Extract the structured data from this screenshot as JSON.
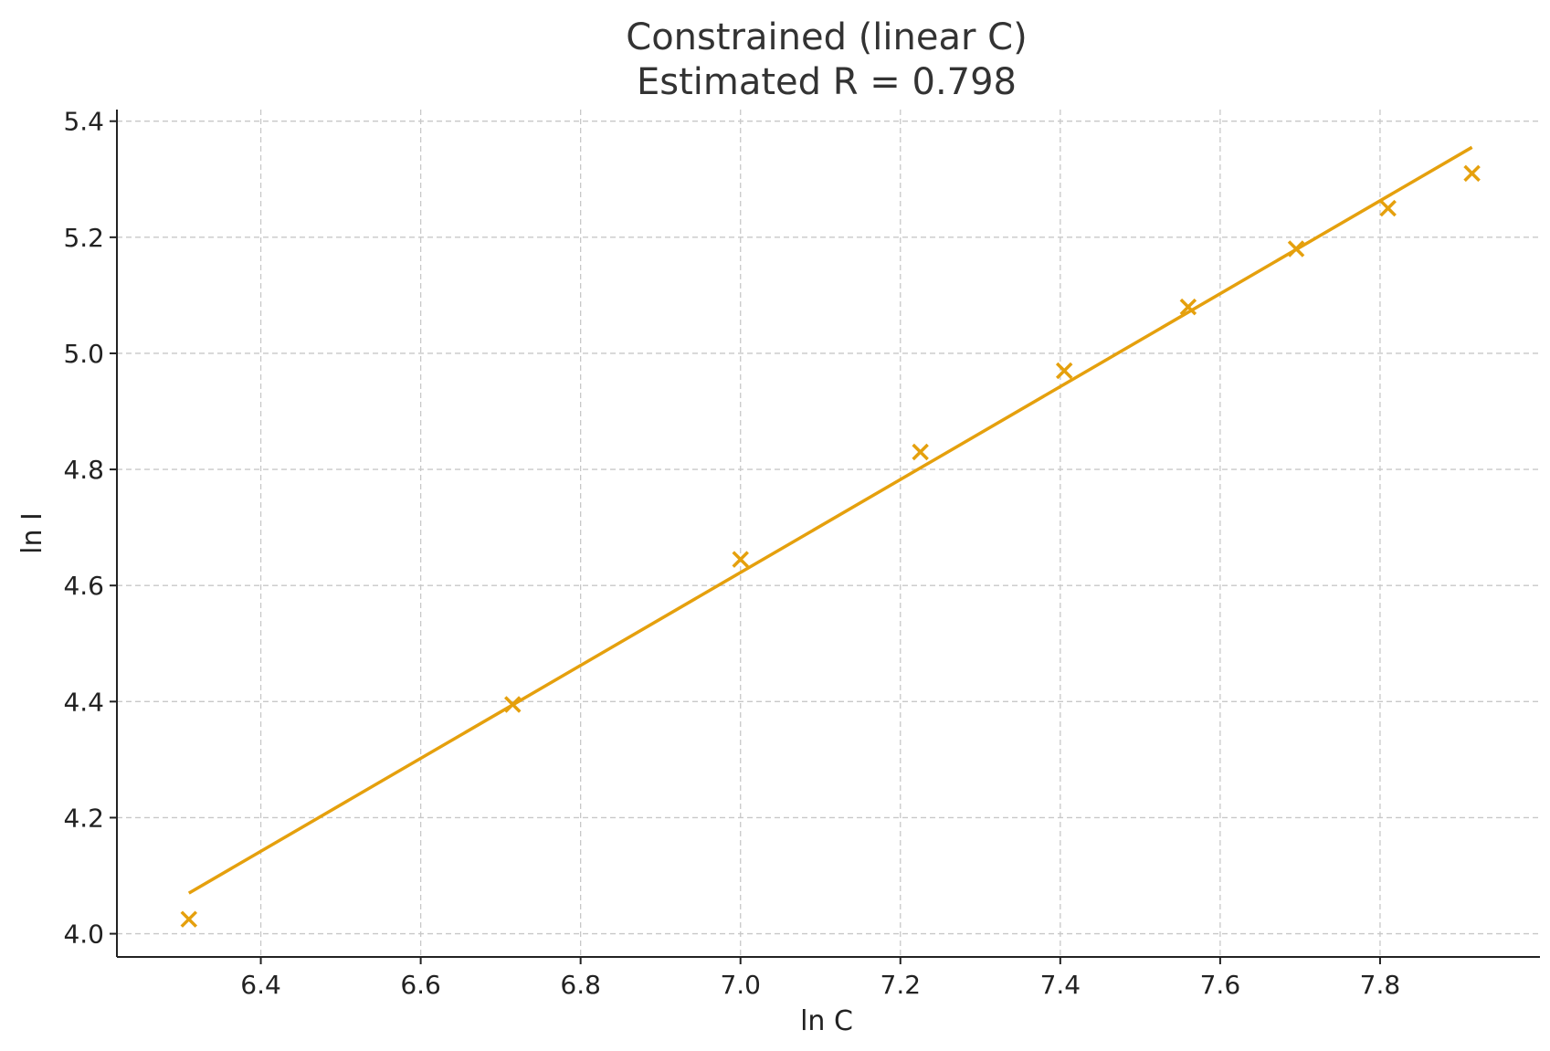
{
  "chart_data": {
    "type": "scatter",
    "title": "Constrained (linear C)",
    "subtitle": "Estimated R = 0.798",
    "xlabel": "ln C",
    "ylabel": "ln I",
    "xlim": [
      6.22,
      8.0
    ],
    "ylim": [
      3.96,
      5.42
    ],
    "xticks": [
      "6.4",
      "6.6",
      "6.8",
      "7.0",
      "7.2",
      "7.4",
      "7.6",
      "7.8"
    ],
    "yticks": [
      "4.0",
      "4.2",
      "4.4",
      "4.6",
      "4.8",
      "5.0",
      "5.2",
      "5.4"
    ],
    "grid": true,
    "color": "#E5A00D",
    "points": {
      "x": [
        6.31,
        6.715,
        7.0,
        7.225,
        7.405,
        7.56,
        7.695,
        7.81,
        7.915
      ],
      "y": [
        4.025,
        4.395,
        4.645,
        4.83,
        4.97,
        5.08,
        5.18,
        5.25,
        5.31
      ]
    },
    "fit_line": {
      "x": [
        6.31,
        7.915
      ],
      "y": [
        4.07,
        5.355
      ]
    }
  }
}
